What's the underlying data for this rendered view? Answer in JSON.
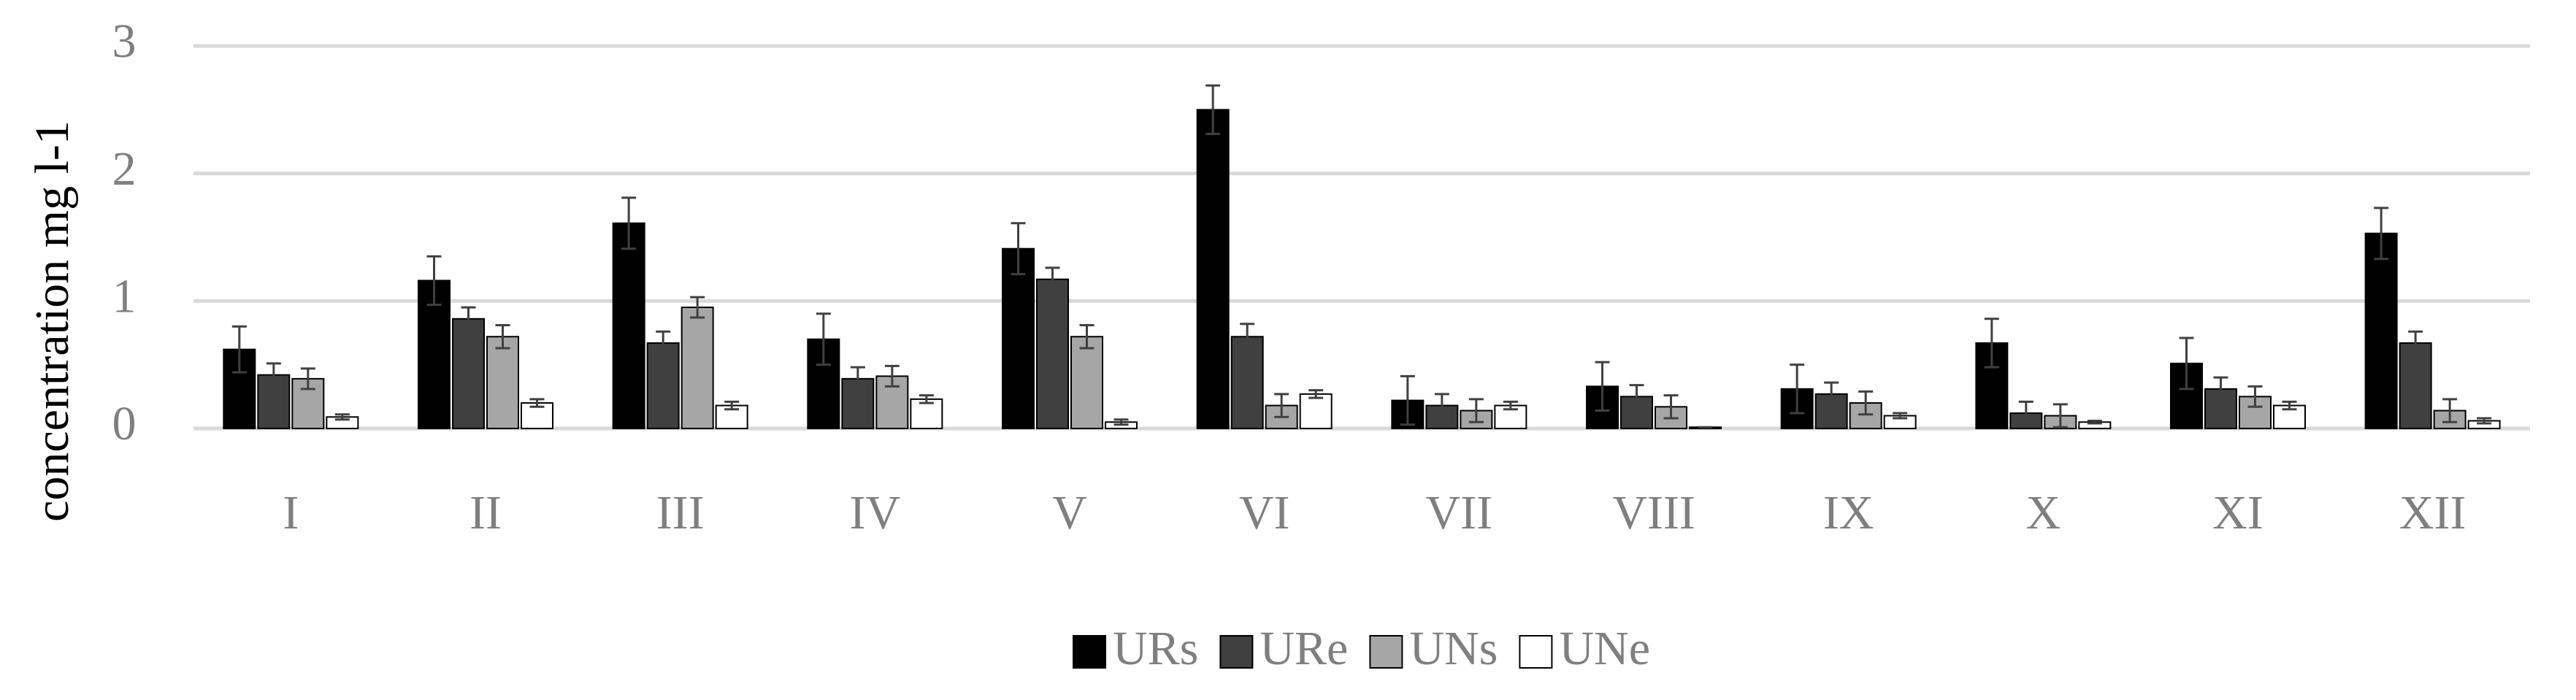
{
  "chart_data": {
    "type": "bar",
    "y_label": "concentration mg l-1",
    "categories": [
      "I",
      "II",
      "III",
      "IV",
      "V",
      "VI",
      "VII",
      "VIII",
      "IX",
      "X",
      "XI",
      "XII"
    ],
    "series": [
      {
        "name": "URs",
        "color": "#000000",
        "values": [
          0.62,
          1.16,
          1.61,
          0.7,
          1.41,
          2.5,
          0.22,
          0.33,
          0.31,
          0.67,
          0.51,
          1.53
        ],
        "errors": [
          0.18,
          0.19,
          0.2,
          0.2,
          0.2,
          0.19,
          0.19,
          0.19,
          0.19,
          0.19,
          0.2,
          0.2
        ]
      },
      {
        "name": "URe",
        "color": "#404040",
        "values": [
          0.42,
          0.86,
          0.67,
          0.39,
          1.17,
          0.72,
          0.18,
          0.25,
          0.27,
          0.12,
          0.31,
          0.67
        ],
        "errors": [
          0.09,
          0.09,
          0.09,
          0.09,
          0.09,
          0.1,
          0.09,
          0.09,
          0.09,
          0.09,
          0.09,
          0.09
        ]
      },
      {
        "name": "UNs",
        "color": "#a6a6a6",
        "values": [
          0.39,
          0.72,
          0.95,
          0.41,
          0.72,
          0.18,
          0.14,
          0.17,
          0.2,
          0.1,
          0.25,
          0.14
        ],
        "errors": [
          0.08,
          0.09,
          0.08,
          0.08,
          0.09,
          0.09,
          0.09,
          0.09,
          0.09,
          0.09,
          0.08,
          0.09
        ]
      },
      {
        "name": "UNe",
        "color": "#ffffff",
        "values": [
          0.09,
          0.2,
          0.18,
          0.23,
          0.05,
          0.27,
          0.18,
          0.01,
          0.1,
          0.05,
          0.18,
          0.06
        ],
        "errors": [
          0.02,
          0.03,
          0.03,
          0.03,
          0.02,
          0.03,
          0.03,
          0,
          0.02,
          0.01,
          0.03,
          0.02
        ]
      }
    ],
    "ylim": [
      0,
      3
    ],
    "yticks": [
      0,
      1,
      2,
      3
    ],
    "grid": true,
    "legend": "bottom"
  }
}
